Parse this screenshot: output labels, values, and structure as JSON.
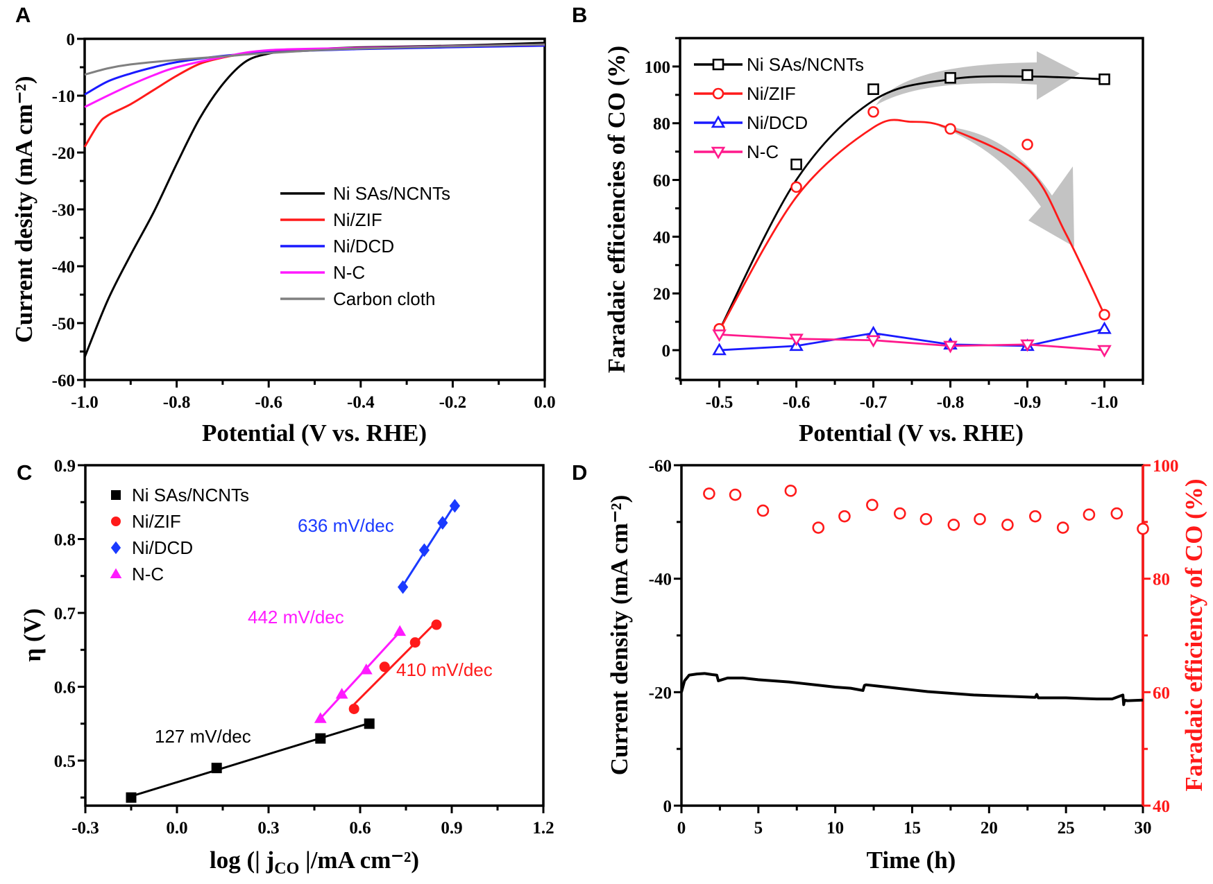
{
  "panel_labels": {
    "A": "A",
    "B": "B",
    "C": "C",
    "D": "D"
  },
  "chart_data": [
    {
      "panel": "A",
      "type": "line",
      "title": "",
      "xlabel": "Potential (V vs. RHE)",
      "ylabel": "Current desity (mA cm⁻²)",
      "xlim": [
        -1.0,
        0.0
      ],
      "ylim": [
        -60,
        0
      ],
      "xticks": [
        -1.0,
        -0.8,
        -0.6,
        -0.4,
        -0.2,
        0.0
      ],
      "xtick_labels": [
        "-1.0",
        "-0.8",
        "-0.6",
        "-0.4",
        "-0.2",
        "0.0"
      ],
      "yticks": [
        0,
        -10,
        -20,
        -30,
        -40,
        -50,
        -60
      ],
      "ytick_labels": [
        "0",
        "-10",
        "-20",
        "-30",
        "-40",
        "-50",
        "-60"
      ],
      "grid": false,
      "legend": "center-right",
      "series": [
        {
          "name": "Ni SAs/NCNTs",
          "color": "#000000",
          "x": [
            -1.0,
            -0.95,
            -0.9,
            -0.85,
            -0.8,
            -0.75,
            -0.7,
            -0.65,
            -0.6,
            -0.55,
            -0.5,
            -0.4,
            -0.2,
            0.0
          ],
          "y": [
            -56,
            -46,
            -38,
            -30.5,
            -22,
            -14,
            -8,
            -4,
            -2.6,
            -2.1,
            -1.8,
            -1.5,
            -1.2,
            -0.7
          ]
        },
        {
          "name": "Ni/ZIF",
          "color": "#ff1a1a",
          "x": [
            -1.0,
            -0.97,
            -0.95,
            -0.9,
            -0.85,
            -0.8,
            -0.75,
            -0.7,
            -0.65,
            -0.6,
            -0.4,
            0.0
          ],
          "y": [
            -19,
            -15,
            -13.5,
            -11.5,
            -9,
            -6.5,
            -4.4,
            -3.3,
            -2.6,
            -2.1,
            -1.6,
            -1.2
          ]
        },
        {
          "name": "Ni/DCD",
          "color": "#1a1aff",
          "x": [
            -1.0,
            -0.95,
            -0.9,
            -0.85,
            -0.8,
            -0.7,
            -0.6,
            -0.4,
            0.0
          ],
          "y": [
            -9.8,
            -7.5,
            -6.1,
            -5.0,
            -4.1,
            -3.0,
            -2.4,
            -1.8,
            -1.2
          ]
        },
        {
          "name": "N-C",
          "color": "#ff1aff",
          "x": [
            -1.0,
            -0.95,
            -0.9,
            -0.85,
            -0.8,
            -0.7,
            -0.6,
            -0.4,
            0.0
          ],
          "y": [
            -12,
            -10,
            -8.1,
            -6.4,
            -5.0,
            -3.2,
            -2.0,
            -1.6,
            -1.0
          ]
        },
        {
          "name": "Carbon cloth",
          "color": "#808080",
          "x": [
            -1.0,
            -0.95,
            -0.9,
            -0.8,
            -0.7,
            -0.6,
            -0.4,
            0.0
          ],
          "y": [
            -6.3,
            -5.2,
            -4.5,
            -3.7,
            -3.1,
            -2.5,
            -1.7,
            -1.0
          ]
        }
      ]
    },
    {
      "panel": "B",
      "type": "line",
      "title": "",
      "xlabel": "Potential (V vs. RHE)",
      "ylabel": "Faradaic efficiencies of CO (%)",
      "xlim": [
        -0.449,
        -1.05
      ],
      "ylim": [
        -10.5,
        110
      ],
      "xticks": [
        -0.5,
        -0.6,
        -0.7,
        -0.8,
        -0.9,
        -1.0
      ],
      "xtick_labels": [
        "-0.5",
        "-0.6",
        "-0.7",
        "-0.8",
        "-0.9",
        "-1.0"
      ],
      "yticks": [
        0,
        20,
        40,
        60,
        80,
        100
      ],
      "ytick_labels": [
        "0",
        "20",
        "40",
        "60",
        "80",
        "100"
      ],
      "grid": false,
      "legend": "top-left",
      "annotations": [
        "gray arrow: Ni SAs/NCNTs FE stays high",
        "gray arrow: Ni/ZIF FE drops"
      ],
      "series": [
        {
          "name": "Ni SAs/NCNTs",
          "color": "#000000",
          "marker": "square",
          "x": [
            -0.6,
            -0.7,
            -0.8,
            -0.9,
            -1.0
          ],
          "y": [
            65.5,
            92,
            96,
            97,
            95.5
          ],
          "fit_x": [
            -0.5,
            -0.6,
            -0.7,
            -0.8,
            -0.9,
            -1.0
          ],
          "fit_y": [
            7,
            60,
            88,
            95.5,
            96.5,
            95.5
          ]
        },
        {
          "name": "Ni/ZIF",
          "color": "#ff1a1a",
          "marker": "circle",
          "x": [
            -0.5,
            -0.6,
            -0.7,
            -0.8,
            -0.9,
            -1.0
          ],
          "y": [
            7.5,
            57.5,
            84,
            78,
            72.5,
            12.5
          ],
          "fit_x": [
            -0.5,
            -0.6,
            -0.7,
            -0.75,
            -0.8,
            -0.9,
            -0.95,
            -1.0
          ],
          "fit_y": [
            7,
            54,
            78.5,
            80.5,
            78,
            64,
            41,
            12.5
          ]
        },
        {
          "name": "Ni/DCD",
          "color": "#1a1aff",
          "marker": "triangle-up",
          "x": [
            -0.5,
            -0.6,
            -0.7,
            -0.8,
            -0.9,
            -1.0
          ],
          "y": [
            0,
            1.5,
            6,
            2,
            1.5,
            7.5
          ]
        },
        {
          "name": "N-C",
          "color": "#ff1a8c",
          "marker": "triangle-down",
          "x": [
            -0.5,
            -0.6,
            -0.7,
            -0.8,
            -0.9,
            -1.0
          ],
          "y": [
            5.5,
            4,
            3.5,
            1.5,
            2,
            0
          ]
        }
      ]
    },
    {
      "panel": "C",
      "type": "scatter",
      "title": "",
      "xlabel": "log (| j",
      "xlabel_sub": "CO",
      "xlabel_tail": " |/mA cm⁻²)",
      "ylabel": "η (V)",
      "xlim": [
        -0.3,
        1.2
      ],
      "ylim": [
        0.439,
        0.9
      ],
      "xticks": [
        -0.3,
        0.0,
        0.3,
        0.6,
        0.9,
        1.2
      ],
      "xtick_labels": [
        "-0.3",
        "0.0",
        "0.3",
        "0.6",
        "0.9",
        "1.2"
      ],
      "yticks": [
        0.5,
        0.6,
        0.7,
        0.8,
        0.9
      ],
      "ytick_labels": [
        "0.5",
        "0.6",
        "0.7",
        "0.8",
        "0.9"
      ],
      "grid": false,
      "legend": "top-left",
      "series": [
        {
          "name": "Ni SAs/NCNTs",
          "color": "#000000",
          "marker": "square",
          "slope_label": "127 mV/dec",
          "x": [
            -0.15,
            0.13,
            0.47,
            0.63
          ],
          "y": [
            0.45,
            0.49,
            0.53,
            0.55
          ]
        },
        {
          "name": "Ni/ZIF",
          "color": "#ff1a1a",
          "marker": "circle",
          "slope_label": "410 mV/dec",
          "x": [
            0.58,
            0.68,
            0.78,
            0.85
          ],
          "y": [
            0.57,
            0.627,
            0.66,
            0.684
          ]
        },
        {
          "name": "Ni/DCD",
          "color": "#1a3aff",
          "marker": "diamond",
          "slope_label": "636 mV/dec",
          "x": [
            0.74,
            0.81,
            0.87,
            0.91
          ],
          "y": [
            0.735,
            0.785,
            0.822,
            0.845
          ]
        },
        {
          "name": "N-C",
          "color": "#ff1aff",
          "marker": "triangle-up",
          "slope_label": "442 mV/dec",
          "x": [
            0.47,
            0.54,
            0.62,
            0.73
          ],
          "y": [
            0.557,
            0.59,
            0.623,
            0.675
          ]
        }
      ]
    },
    {
      "panel": "D",
      "type": "line",
      "title": "",
      "xlabel": "Time (h)",
      "ylabel": "Current density (mA cm⁻²)",
      "ylabel_right": "Faradaic efficiency of CO (%)",
      "xlim": [
        0,
        30
      ],
      "ylim": [
        0,
        -60
      ],
      "ylim_right": [
        40,
        100
      ],
      "xticks": [
        0,
        5,
        10,
        15,
        20,
        25,
        30
      ],
      "xtick_labels": [
        "0",
        "5",
        "10",
        "15",
        "20",
        "25",
        "30"
      ],
      "yticks": [
        0,
        -20,
        -40,
        -60
      ],
      "ytick_labels": [
        "0",
        "-20",
        "-40",
        "-60"
      ],
      "yticks_right": [
        40,
        60,
        80,
        100
      ],
      "ytick_labels_right": [
        "40",
        "60",
        "80",
        "100"
      ],
      "right_axis_color": "#ff1a1a",
      "grid": false,
      "series": [
        {
          "name": "Current density",
          "color": "#000000",
          "axis": "left",
          "x": [
            0,
            0.2,
            0.5,
            1,
            1.5,
            2,
            2.3,
            2.4,
            3,
            4,
            5,
            6,
            7,
            8,
            9,
            10,
            11,
            11.8,
            11.9,
            12,
            13,
            14,
            15,
            16,
            17,
            18,
            19,
            20,
            21,
            22,
            23,
            23.1,
            23.2,
            24,
            25,
            26,
            27,
            28,
            28.7,
            28.75,
            28.8,
            29,
            30
          ],
          "y": [
            -20,
            -22,
            -23,
            -23.2,
            -23.3,
            -23.1,
            -23,
            -22,
            -22.5,
            -22.5,
            -22.2,
            -22,
            -21.8,
            -21.5,
            -21.2,
            -20.9,
            -20.7,
            -20.3,
            -21.2,
            -21.3,
            -21,
            -20.7,
            -20.4,
            -20.1,
            -19.9,
            -19.7,
            -19.5,
            -19.4,
            -19.3,
            -19.2,
            -19.1,
            -19.6,
            -19.0,
            -19.0,
            -19.0,
            -18.9,
            -18.8,
            -18.8,
            -19.5,
            -17.8,
            -18.6,
            -18.5,
            -18.6
          ]
        },
        {
          "name": "Faradaic efficiency of CO",
          "color": "#ff1a1a",
          "axis": "right",
          "marker": "circle",
          "x": [
            1.8,
            3.5,
            5.3,
            7.1,
            8.9,
            10.6,
            12.4,
            14.2,
            15.9,
            17.7,
            19.4,
            21.2,
            23.0,
            24.8,
            26.5,
            28.3,
            30.0
          ],
          "y": [
            95,
            94.8,
            92,
            95.5,
            89,
            91,
            93,
            91.5,
            90.5,
            89.5,
            90.5,
            89.5,
            91,
            89,
            91.3,
            91.5,
            88.8
          ]
        }
      ]
    }
  ]
}
